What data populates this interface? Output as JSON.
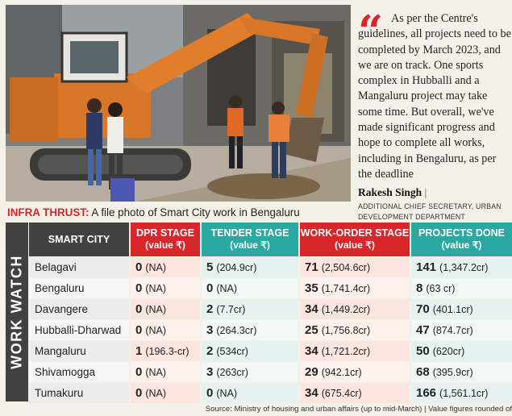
{
  "quote": {
    "text": "As per the Centre's guidelines, all projects need to be completed by March 2023, and we are on track. One sports complex in Hubballi and a Mangaluru project may take some time. But overall, we've made significant progress and hope to complete all works, including in Bengaluru, as per the deadline",
    "author": "Rakesh Singh",
    "author_bar": "|",
    "designation": "ADDITIONAL CHIEF SECRETARY, URBAN DEVELOPMENT DEPARTMENT",
    "mark_color": "#d8262b"
  },
  "caption": {
    "lead": "INFRA THRUST:",
    "text": " A file photo of Smart City work in Bengaluru"
  },
  "table": {
    "side_title": "WORK WATCH",
    "headers": {
      "city": "SMART CITY",
      "dpr": "DPR STAGE",
      "dpr_sub": "(value ₹)",
      "tender": "TENDER STAGE",
      "tender_sub": "(value ₹)",
      "work_order": "WORK-ORDER STAGE",
      "work_order_sub": "(value ₹)",
      "done": "PROJECTS DONE",
      "done_sub": "(value ₹)"
    },
    "rows": [
      {
        "city": "Belagavi",
        "dpr_n": "0",
        "dpr_v": "(NA)",
        "ten_n": "5",
        "ten_v": "(204.9cr)",
        "wo_n": "71",
        "wo_v": "(2,504.6cr)",
        "pd_n": "141",
        "pd_v": "(1,347.2cr)"
      },
      {
        "city": "Bengaluru",
        "dpr_n": "0",
        "dpr_v": "(NA)",
        "ten_n": "0",
        "ten_v": "(NA)",
        "wo_n": "35",
        "wo_v": "(1,741.4cr)",
        "pd_n": "8",
        "pd_v": "(63 cr)"
      },
      {
        "city": "Davangere",
        "dpr_n": "0",
        "dpr_v": "(NA)",
        "ten_n": "2",
        "ten_v": "(7.7cr)",
        "wo_n": "34",
        "wo_v": "(1,449.2cr)",
        "pd_n": "70",
        "pd_v": "(401.1cr)"
      },
      {
        "city": "Hubballi-Dharwad",
        "dpr_n": "0",
        "dpr_v": "(NA)",
        "ten_n": "3",
        "ten_v": "(264.3cr)",
        "wo_n": "25",
        "wo_v": "(1,756.8cr)",
        "pd_n": "47",
        "pd_v": "(874.7cr)"
      },
      {
        "city": "Mangaluru",
        "dpr_n": "1",
        "dpr_v": "(196.3-cr)",
        "ten_n": "2",
        "ten_v": "(534cr)",
        "wo_n": "34",
        "wo_v": "(1,721.2cr)",
        "pd_n": "50",
        "pd_v": "(620cr)"
      },
      {
        "city": "Shivamogga",
        "dpr_n": "0",
        "dpr_v": "(NA)",
        "ten_n": "3",
        "ten_v": "(263cr)",
        "wo_n": "29",
        "wo_v": "(942.1cr)",
        "pd_n": "68",
        "pd_v": "(395.9cr)"
      },
      {
        "city": "Tumakuru",
        "dpr_n": "0",
        "dpr_v": "(NA)",
        "ten_n": "0",
        "ten_v": "(NA)",
        "wo_n": "34",
        "wo_v": "(675.4cr)",
        "pd_n": "166",
        "pd_v": "(1,561.1cr)"
      }
    ]
  },
  "source": "Source: Ministry of housing and urban affairs (up to mid-March) | Value figures rounded of",
  "colors": {
    "red": "#d8262b",
    "teal": "#2aa9a3",
    "dark": "#414141"
  }
}
